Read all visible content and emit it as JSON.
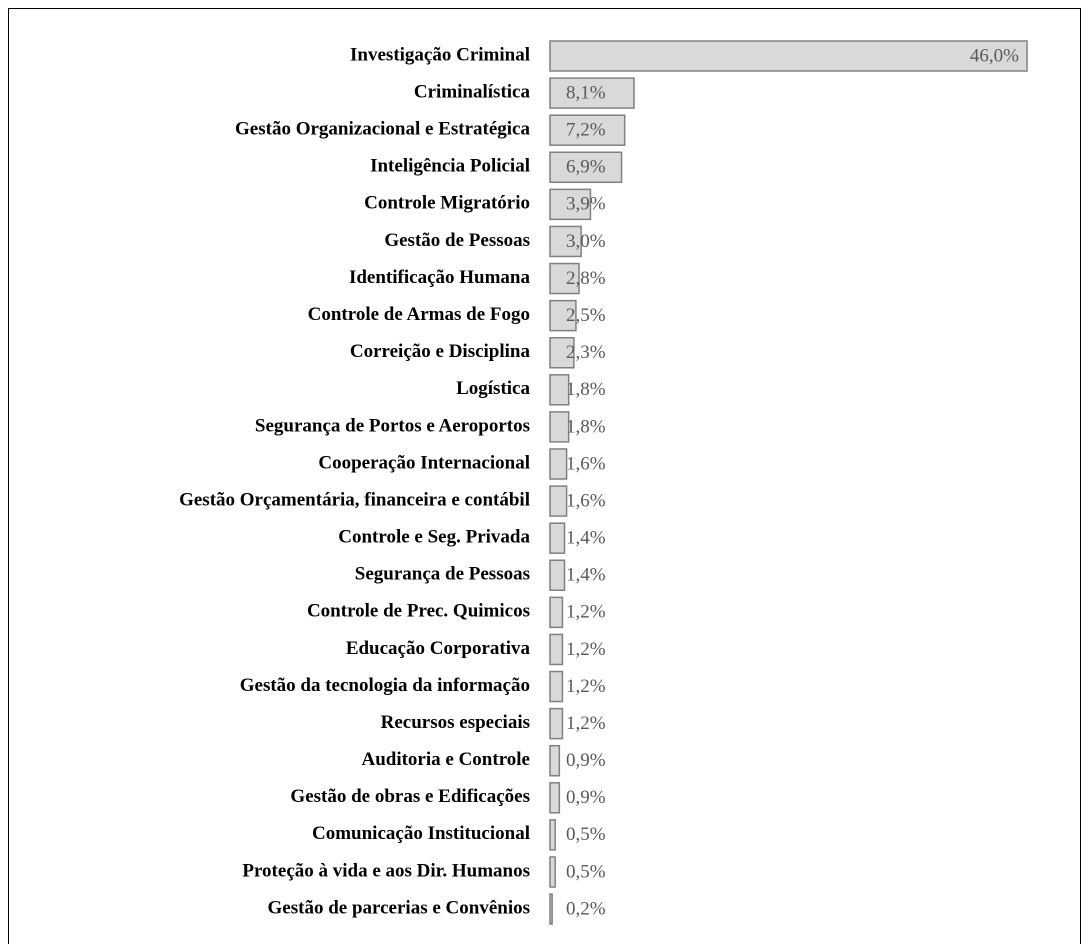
{
  "chart_data": {
    "type": "bar",
    "orientation": "horizontal",
    "categories": [
      "Investigação Criminal",
      "Criminalística",
      "Gestão Organizacional e Estratégica",
      "Inteligência Policial",
      "Controle Migratório",
      "Gestão de Pessoas",
      "Identificação Humana",
      "Controle de Armas de Fogo",
      "Correição e Disciplina",
      "Logística",
      "Segurança de Portos e Aeroportos",
      "Cooperação Internacional",
      "Gestão Orçamentária, financeira e contábil",
      "Controle e Seg. Privada",
      "Segurança de Pessoas",
      "Controle de Prec. Quimicos",
      "Educação Corporativa",
      "Gestão da tecnologia da informação",
      "Recursos especiais",
      "Auditoria e Controle",
      "Gestão de obras e Edificações",
      "Comunicação Institucional",
      "Proteção à vida e aos Dir. Humanos",
      "Gestão de parcerias e Convênios"
    ],
    "values": [
      46.0,
      8.1,
      7.2,
      6.9,
      3.9,
      3.0,
      2.8,
      2.5,
      2.3,
      1.8,
      1.8,
      1.6,
      1.6,
      1.4,
      1.4,
      1.2,
      1.2,
      1.2,
      1.2,
      0.9,
      0.9,
      0.5,
      0.5,
      0.2
    ],
    "value_labels": [
      "46,0%",
      "8,1%",
      "7,2%",
      "6,9%",
      "3,9%",
      "3,0%",
      "2,8%",
      "2,5%",
      "2,3%",
      "1,8%",
      "1,8%",
      "1,6%",
      "1,6%",
      "1,4%",
      "1,4%",
      "1,2%",
      "1,2%",
      "1,2%",
      "1,2%",
      "0,9%",
      "0,9%",
      "0,5%",
      "0,5%",
      "0,2%"
    ],
    "color": "#d9d9d9",
    "edgecolor": "#808080",
    "xlim": [
      0,
      46
    ]
  }
}
